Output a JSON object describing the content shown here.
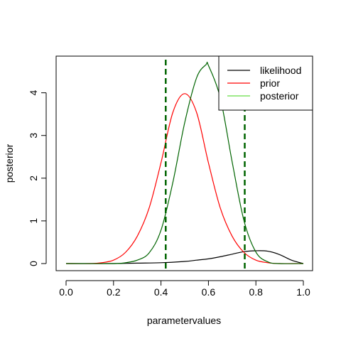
{
  "chart_data": {
    "type": "line",
    "title": "",
    "xlabel": "parametervalues",
    "ylabel": "posterior",
    "xlim": [
      0.0,
      1.0
    ],
    "ylim": [
      0,
      4.7
    ],
    "x_ticks": [
      0.0,
      0.2,
      0.4,
      0.6,
      0.8,
      1.0
    ],
    "x_tick_labels": [
      "0.0",
      "0.2",
      "0.4",
      "0.6",
      "0.8",
      "1.0"
    ],
    "y_ticks": [
      0,
      1,
      2,
      3,
      4
    ],
    "y_tick_labels": [
      "0",
      "1",
      "2",
      "3",
      "4"
    ],
    "grid": false,
    "legend_position": "top-right",
    "series": [
      {
        "name": "likelihood",
        "color": "#000000",
        "x": [
          0.0,
          0.1,
          0.2,
          0.3,
          0.4,
          0.5,
          0.55,
          0.6,
          0.65,
          0.7,
          0.75,
          0.8,
          0.85,
          0.9,
          0.95,
          1.0
        ],
        "y": [
          0.0,
          0.0,
          0.0,
          0.01,
          0.02,
          0.05,
          0.08,
          0.11,
          0.16,
          0.22,
          0.28,
          0.3,
          0.29,
          0.21,
          0.08,
          0.0
        ]
      },
      {
        "name": "prior",
        "color": "#ff0000",
        "x": [
          0.0,
          0.1,
          0.15,
          0.2,
          0.25,
          0.3,
          0.35,
          0.4,
          0.45,
          0.5,
          0.55,
          0.6,
          0.65,
          0.7,
          0.75,
          0.8,
          0.85,
          0.9,
          1.0
        ],
        "y": [
          0.0,
          0.0,
          0.02,
          0.08,
          0.26,
          0.64,
          1.3,
          2.36,
          3.54,
          3.98,
          3.54,
          2.36,
          1.3,
          0.64,
          0.26,
          0.08,
          0.02,
          0.0,
          0.0
        ],
        "legend_color": "#ff0000"
      },
      {
        "name": "posterior",
        "color": "#006400",
        "legend_color": "#66dd44",
        "x": [
          0.0,
          0.2,
          0.25,
          0.3,
          0.35,
          0.4,
          0.45,
          0.5,
          0.55,
          0.59,
          0.6,
          0.65,
          0.7,
          0.75,
          0.8,
          0.85,
          0.9,
          1.0
        ],
        "y": [
          0.0,
          0.0,
          0.02,
          0.08,
          0.25,
          0.78,
          1.9,
          3.3,
          4.35,
          4.66,
          4.64,
          3.88,
          2.38,
          1.0,
          0.27,
          0.04,
          0.0,
          0.0
        ]
      }
    ],
    "vertical_lines": [
      {
        "x": 0.42,
        "color": "#006400",
        "style": "dashed"
      },
      {
        "x": 0.753,
        "color": "#006400",
        "style": "dashed"
      }
    ]
  }
}
